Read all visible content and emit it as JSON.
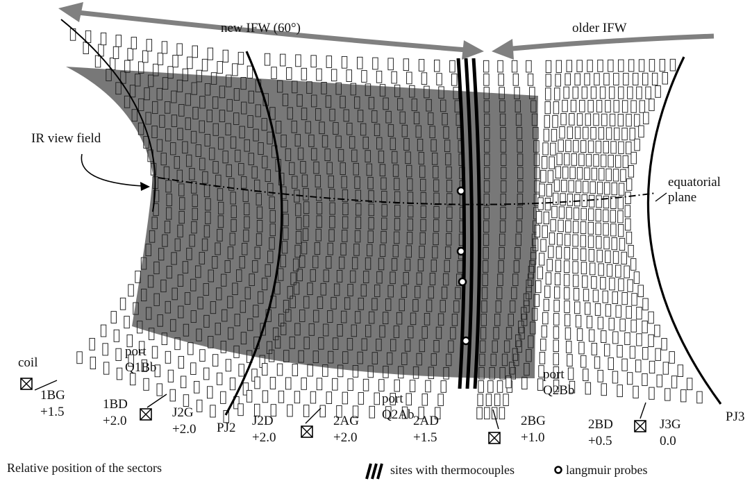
{
  "colors": {
    "arrow": "#808080",
    "ir_field": "#5a5a5a",
    "tile_fill": "#ffffff",
    "tile_stroke": "#111111",
    "line": "#000000"
  },
  "top_arrows": {
    "new_ifw": "new IFW (60°)",
    "older_ifw": "older IFW"
  },
  "annotations": {
    "ir_view_field": "IR view field",
    "equatorial_1": "equatorial",
    "equatorial_2": "plane",
    "coil": "coil",
    "port": "port",
    "q1bb": "Q1Bb",
    "q2ab": "Q2Ab",
    "q2bb": "Q2Bb",
    "pj2": "PJ2",
    "pj3": "PJ3"
  },
  "sectors": [
    {
      "name": "1BG",
      "value": "+1.5"
    },
    {
      "name": "1BD",
      "value": "+2.0"
    },
    {
      "name": "J2G",
      "value": "+2.0"
    },
    {
      "name": "J2D",
      "value": "+2.0"
    },
    {
      "name": "2AG",
      "value": "+2.0"
    },
    {
      "name": "2AD",
      "value": "+1.5"
    },
    {
      "name": "2BG",
      "value": "+1.0"
    },
    {
      "name": "2BD",
      "value": "+0.5"
    },
    {
      "name": "J3G",
      "value": "0.0"
    }
  ],
  "footer": {
    "relative_position": "Relative position of the sectors",
    "thermocouples": "sites with thermocouples",
    "langmuir": "langmuir probes"
  }
}
